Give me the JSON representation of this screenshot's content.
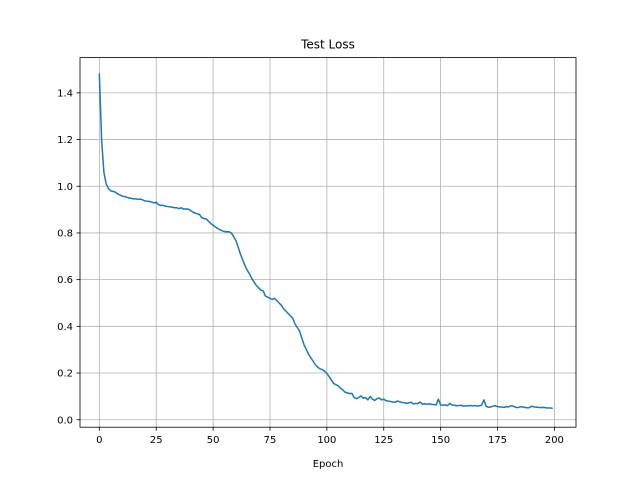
{
  "chart_data": {
    "type": "line",
    "title": "Test Loss",
    "xlabel": "Epoch",
    "ylabel": "",
    "xlim": [
      -8.5,
      209.5
    ],
    "ylim": [
      -0.032,
      1.551
    ],
    "xticks": [
      0,
      25,
      50,
      75,
      100,
      125,
      150,
      175,
      200
    ],
    "yticks": [
      0.0,
      0.2,
      0.4,
      0.6,
      0.8,
      1.0,
      1.2,
      1.4
    ],
    "ytick_labels": [
      "0.0",
      "0.2",
      "0.4",
      "0.6",
      "0.8",
      "1.0",
      "1.2",
      "1.4"
    ],
    "grid": true,
    "series_color": "#1f77b4",
    "series": [
      {
        "x": [
          0,
          1,
          2,
          3,
          4,
          5,
          6,
          7,
          8,
          9,
          10,
          11,
          12,
          13,
          14,
          15,
          16,
          17,
          18,
          19,
          20,
          21,
          22,
          23,
          24,
          25,
          26,
          27,
          28,
          29,
          30,
          31,
          32,
          33,
          34,
          35,
          36,
          37,
          38,
          39,
          40,
          41,
          42,
          43,
          44,
          45,
          46,
          47,
          48,
          49,
          50,
          51,
          52,
          53,
          54,
          55,
          56,
          57,
          58,
          59,
          60,
          61,
          62,
          63,
          64,
          65,
          66,
          67,
          68,
          69,
          70,
          71,
          72,
          73,
          74,
          75,
          76,
          77,
          78,
          79,
          80,
          81,
          82,
          83,
          84,
          85,
          86,
          87,
          88,
          89,
          90,
          91,
          92,
          93,
          94,
          95,
          96,
          97,
          98,
          99,
          100,
          101,
          102,
          103,
          104,
          105,
          106,
          107,
          108,
          109,
          110,
          111,
          112,
          113,
          114,
          115,
          116,
          117,
          118,
          119,
          120,
          121,
          122,
          123,
          124,
          125,
          126,
          127,
          128,
          129,
          130,
          131,
          132,
          133,
          134,
          135,
          136,
          137,
          138,
          139,
          140,
          141,
          142,
          143,
          144,
          145,
          146,
          147,
          148,
          149,
          150,
          151,
          152,
          153,
          154,
          155,
          156,
          157,
          158,
          159,
          160,
          161,
          162,
          163,
          164,
          165,
          166,
          167,
          168,
          169,
          170,
          171,
          172,
          173,
          174,
          175,
          176,
          177,
          178,
          179,
          180,
          181,
          182,
          183,
          184,
          185,
          186,
          187,
          188,
          189,
          190,
          191,
          192,
          193,
          194,
          195,
          196,
          197,
          198,
          199
        ],
        "values": [
          1.48,
          1.2,
          1.06,
          1.01,
          0.99,
          0.98,
          0.978,
          0.975,
          0.968,
          0.963,
          0.958,
          0.956,
          0.953,
          0.95,
          0.948,
          0.946,
          0.946,
          0.944,
          0.945,
          0.942,
          0.937,
          0.936,
          0.935,
          0.932,
          0.929,
          0.932,
          0.921,
          0.918,
          0.918,
          0.915,
          0.913,
          0.912,
          0.91,
          0.908,
          0.908,
          0.904,
          0.908,
          0.902,
          0.903,
          0.902,
          0.897,
          0.89,
          0.885,
          0.882,
          0.879,
          0.866,
          0.862,
          0.86,
          0.85,
          0.84,
          0.833,
          0.826,
          0.819,
          0.814,
          0.809,
          0.806,
          0.805,
          0.805,
          0.8,
          0.785,
          0.768,
          0.74,
          0.71,
          0.685,
          0.66,
          0.64,
          0.625,
          0.605,
          0.59,
          0.575,
          0.565,
          0.555,
          0.552,
          0.53,
          0.525,
          0.52,
          0.515,
          0.52,
          0.51,
          0.5,
          0.49,
          0.475,
          0.465,
          0.455,
          0.445,
          0.435,
          0.41,
          0.395,
          0.38,
          0.35,
          0.32,
          0.3,
          0.28,
          0.265,
          0.25,
          0.235,
          0.225,
          0.218,
          0.215,
          0.208,
          0.198,
          0.185,
          0.17,
          0.155,
          0.15,
          0.145,
          0.135,
          0.128,
          0.118,
          0.115,
          0.112,
          0.113,
          0.095,
          0.09,
          0.095,
          0.102,
          0.092,
          0.095,
          0.085,
          0.1,
          0.088,
          0.083,
          0.09,
          0.093,
          0.085,
          0.088,
          0.082,
          0.08,
          0.078,
          0.076,
          0.075,
          0.08,
          0.077,
          0.074,
          0.073,
          0.07,
          0.072,
          0.075,
          0.068,
          0.07,
          0.069,
          0.076,
          0.067,
          0.068,
          0.067,
          0.068,
          0.066,
          0.065,
          0.063,
          0.088,
          0.063,
          0.062,
          0.064,
          0.06,
          0.07,
          0.063,
          0.062,
          0.06,
          0.061,
          0.062,
          0.058,
          0.059,
          0.06,
          0.061,
          0.059,
          0.061,
          0.058,
          0.06,
          0.062,
          0.085,
          0.058,
          0.053,
          0.055,
          0.058,
          0.06,
          0.056,
          0.055,
          0.054,
          0.053,
          0.056,
          0.055,
          0.06,
          0.058,
          0.053,
          0.052,
          0.055,
          0.055,
          0.053,
          0.051,
          0.052,
          0.058,
          0.055,
          0.054,
          0.053,
          0.052,
          0.053,
          0.052,
          0.05,
          0.051,
          0.049
        ]
      }
    ]
  }
}
